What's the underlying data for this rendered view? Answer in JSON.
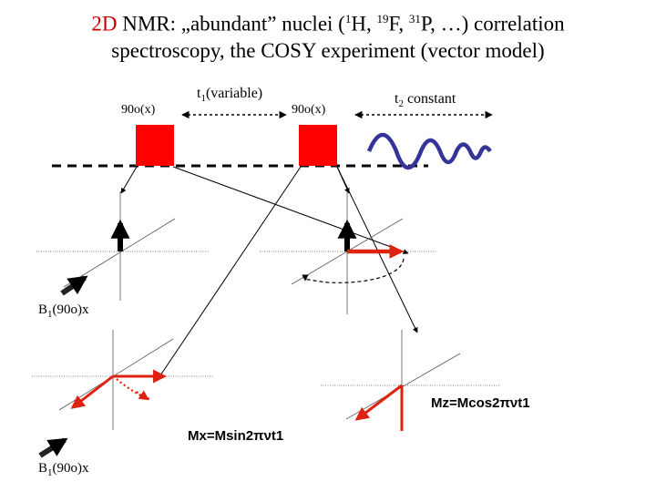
{
  "title": {
    "line1_prefix": "2D",
    "line1_a": " NMR: „abundant” nuclei (",
    "sup1": "1",
    "line1_b": "H, ",
    "sup2": "19",
    "line1_c": "F, ",
    "sup3": "31",
    "line1_d": "P, …) correlation",
    "line2": "spectroscopy, the COSY experiment (vector model)"
  },
  "pulse_sequence": {
    "pulse1_label": "90o(x)",
    "t1_label": "t",
    "t1_sub": "1",
    "t1_suffix": "(variable)",
    "pulse2_label": "90o(x)",
    "t2_label": "t",
    "t2_sub": "2",
    "t2_suffix": " constant"
  },
  "labels": {
    "b1_upper": "B",
    "b1_upper_sub": "1",
    "b1_upper_suffix": "(90o)x",
    "b1_lower": "B",
    "b1_lower_sub": "1",
    "b1_lower_suffix": "(90o)x",
    "mz_formula": "Mz=Mcos2πνt1",
    "mx_formula": "Mx=Msin2πνt1"
  },
  "colors": {
    "pulse": "#ff0000",
    "vector_red": "#dd2211",
    "fid": "#333399",
    "accent": "#cc0000"
  }
}
